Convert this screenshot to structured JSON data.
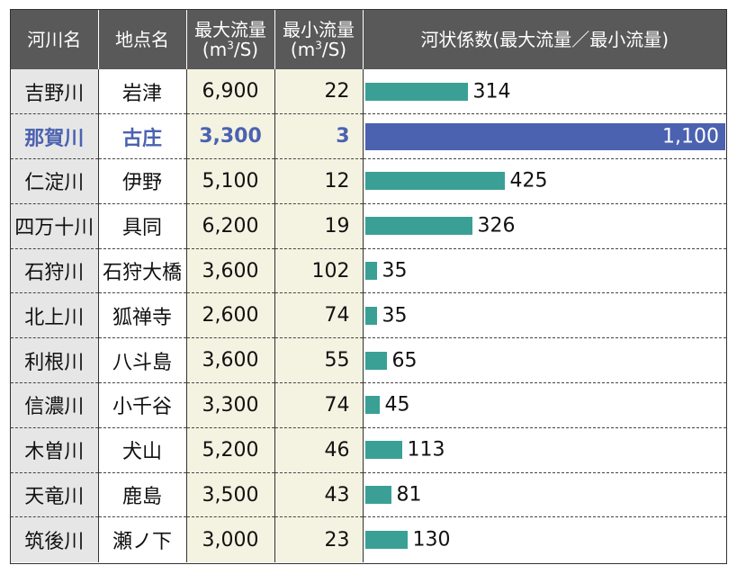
{
  "header": {
    "river": "河川名",
    "station": "地点名",
    "max_flow_line1": "最大流量",
    "max_flow_line2_pre": "(m",
    "max_flow_line2_sup": "3",
    "max_flow_line2_post": "/S)",
    "min_flow_line1": "最小流量",
    "min_flow_line2_pre": "(m",
    "min_flow_line2_sup": "3",
    "min_flow_line2_post": "/S)",
    "coef": "河状係数(最大流量／最小流量)"
  },
  "rows": [
    {
      "river": "吉野川",
      "station": "岩津",
      "max": "6,900",
      "min": "22",
      "coef_label": "314"
    },
    {
      "river": "那賀川",
      "station": "古庄",
      "max": "3,300",
      "min": "3",
      "coef_label": "1,100"
    },
    {
      "river": "仁淀川",
      "station": "伊野",
      "max": "5,100",
      "min": "12",
      "coef_label": "425"
    },
    {
      "river": "四万十川",
      "station": "具同",
      "max": "6,200",
      "min": "19",
      "coef_label": "326"
    },
    {
      "river": "石狩川",
      "station": "石狩大橋",
      "max": "3,600",
      "min": "102",
      "coef_label": "35"
    },
    {
      "river": "北上川",
      "station": "狐禅寺",
      "max": "2,600",
      "min": "74",
      "coef_label": "35"
    },
    {
      "river": "利根川",
      "station": "八斗島",
      "max": "3,600",
      "min": "55",
      "coef_label": "65"
    },
    {
      "river": "信濃川",
      "station": "小千谷",
      "max": "3,300",
      "min": "74",
      "coef_label": "45"
    },
    {
      "river": "木曽川",
      "station": "犬山",
      "max": "5,200",
      "min": "46",
      "coef_label": "113"
    },
    {
      "river": "天竜川",
      "station": "鹿島",
      "max": "3,500",
      "min": "43",
      "coef_label": "81"
    },
    {
      "river": "筑後川",
      "station": "瀬ノ下",
      "max": "3,000",
      "min": "23",
      "coef_label": "130"
    }
  ],
  "chart_data": {
    "type": "bar",
    "categories": [
      "吉野川",
      "那賀川",
      "仁淀川",
      "四万十川",
      "石狩川",
      "北上川",
      "利根川",
      "信濃川",
      "木曽川",
      "天竜川",
      "筑後川"
    ],
    "values": [
      314,
      1100,
      425,
      326,
      35,
      35,
      65,
      45,
      113,
      81,
      130
    ],
    "highlight_index": 1,
    "colors": {
      "bar": "#3aa096",
      "highlight": "#4b62b0",
      "header_bg": "#595959"
    }
  }
}
